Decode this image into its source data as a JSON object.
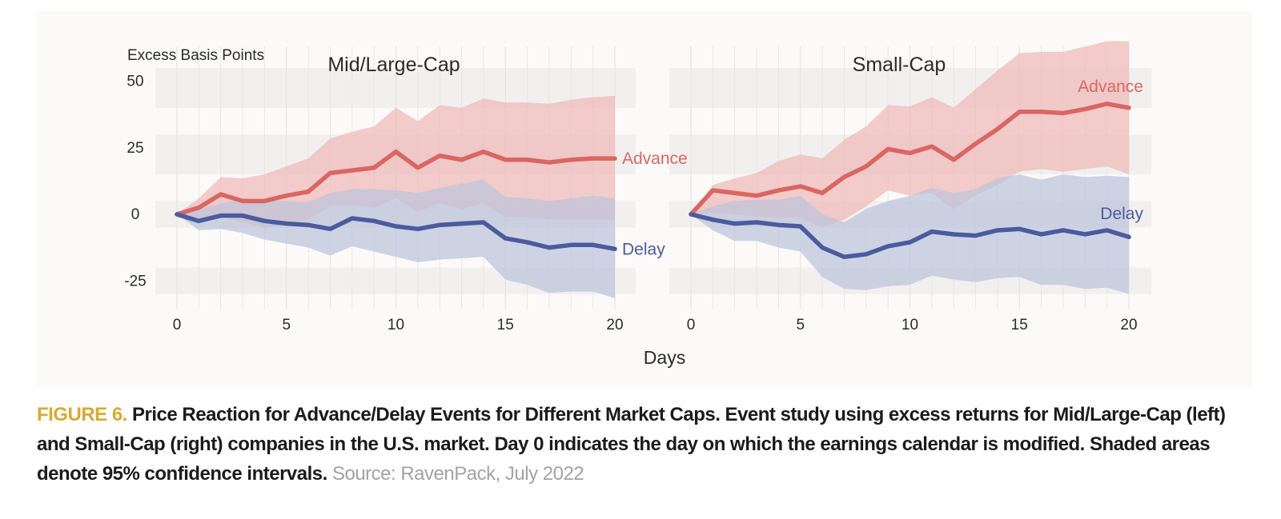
{
  "colors": {
    "advance": "#d96663",
    "advance_band": "#eeb9b9",
    "delay": "#4a5b9e",
    "delay_band": "#bcc3dc",
    "overlap": "#c9b3c4",
    "stripe": "#f1f0ee",
    "grid": "#e6e4e1",
    "panel_bg": "#fbfaf8",
    "figure_label": "#d9a935",
    "source_text": "#a3a3a3"
  },
  "chart_data": {
    "type": "line",
    "ylabel": "Excess Basis Points",
    "xlabel": "Days",
    "ylim": [
      -35,
      55
    ],
    "xlim": [
      0,
      20
    ],
    "yticks": [
      50,
      25,
      0,
      -25
    ],
    "xticks": [
      0,
      5,
      10,
      15,
      20
    ],
    "grid": true,
    "legend": "direct labels at line ends",
    "panels": [
      {
        "title": "Mid/Large-Cap",
        "series": [
          {
            "name": "Advance",
            "x": [
              0,
              1,
              2,
              3,
              4,
              5,
              6,
              7,
              8,
              9,
              10,
              11,
              12,
              13,
              14,
              15,
              16,
              17,
              18,
              19,
              20
            ],
            "values": [
              0,
              2.5,
              7.5,
              5,
              5,
              7,
              8.5,
              15.5,
              16.5,
              17.5,
              23.5,
              17.5,
              22,
              20.5,
              23.5,
              20.5,
              20.5,
              19.5,
              20.5,
              21,
              21
            ],
            "upper": [
              0,
              6,
              14,
              13.5,
              15,
              18,
              21,
              28.5,
              31,
              33,
              40,
              35,
              41,
              40,
              43.5,
              42,
              42,
              41.5,
              43,
              44,
              44.5
            ],
            "lower": [
              0,
              -1.5,
              -1,
              -3,
              -5,
              -4,
              -2,
              3,
              3.5,
              2.5,
              6,
              1,
              4,
              2,
              4,
              -1,
              -1,
              -2,
              -2,
              -2,
              -2
            ]
          },
          {
            "name": "Delay",
            "x": [
              0,
              1,
              2,
              3,
              4,
              5,
              6,
              7,
              8,
              9,
              10,
              11,
              12,
              13,
              14,
              15,
              16,
              17,
              18,
              19,
              20
            ],
            "values": [
              0,
              -2.5,
              -0.5,
              -0.5,
              -2.5,
              -3.5,
              -4,
              -5.5,
              -1.5,
              -2.5,
              -4.5,
              -5.5,
              -4,
              -3.5,
              -3,
              -9,
              -10.5,
              -12.5,
              -11.5,
              -11.5,
              -13
            ],
            "upper": [
              0,
              2,
              4,
              6,
              5.5,
              5,
              4.5,
              8,
              9.5,
              9.5,
              9,
              8,
              10,
              11.5,
              13,
              6.5,
              6,
              5,
              6,
              7,
              6
            ],
            "lower": [
              0,
              -6,
              -5.5,
              -7,
              -9.5,
              -11,
              -12.5,
              -15.5,
              -12,
              -14,
              -16,
              -18,
              -17,
              -16.5,
              -16,
              -24.5,
              -26.5,
              -29.5,
              -29,
              -29,
              -31.5
            ]
          }
        ]
      },
      {
        "title": "Small-Cap",
        "series": [
          {
            "name": "Advance",
            "x": [
              0,
              1,
              2,
              3,
              4,
              5,
              6,
              7,
              8,
              9,
              10,
              11,
              12,
              13,
              14,
              15,
              16,
              17,
              18,
              19,
              20
            ],
            "values": [
              0,
              9,
              8,
              7,
              9,
              10.5,
              8,
              14,
              18,
              24.5,
              23,
              25.5,
              20.5,
              26.5,
              32,
              38.5,
              38.5,
              38,
              39.5,
              41.5,
              40
            ],
            "upper": [
              0,
              11,
              13.5,
              15.5,
              20,
              22.5,
              21,
              28,
              33,
              41,
              40.5,
              44,
              40,
              47,
              54,
              60.5,
              61,
              61,
              63,
              65,
              65
            ],
            "lower": [
              0,
              0.5,
              0,
              -1,
              -1.5,
              -1,
              -5,
              -2,
              3,
              9,
              7,
              8,
              2,
              7,
              11,
              16,
              17,
              16,
              17,
              18,
              15
            ]
          },
          {
            "name": "Delay",
            "x": [
              0,
              1,
              2,
              3,
              4,
              5,
              6,
              7,
              8,
              9,
              10,
              11,
              12,
              13,
              14,
              15,
              16,
              17,
              18,
              19,
              20
            ],
            "values": [
              0,
              -2,
              -3.5,
              -3,
              -4,
              -4.5,
              -12.5,
              -16,
              -15,
              -12,
              -10.5,
              -6.5,
              -7.5,
              -8,
              -6,
              -5.5,
              -7.5,
              -6,
              -7.5,
              -6,
              -8.5
            ],
            "upper": [
              0,
              3,
              5,
              5.5,
              5.5,
              7,
              0,
              -3,
              2,
              5,
              7,
              10,
              8,
              9.5,
              13.5,
              15,
              13,
              15,
              14,
              14.5,
              14
            ],
            "lower": [
              0,
              -6,
              -10,
              -10,
              -12.5,
              -14,
              -23.5,
              -28,
              -28.5,
              -27,
              -26.5,
              -23,
              -24.5,
              -25.5,
              -24,
              -23.5,
              -26.5,
              -26.5,
              -28,
              -27.5,
              -30
            ]
          }
        ]
      }
    ]
  },
  "caption": {
    "figure_label": "FIGURE 6.",
    "text": "Price Reaction for Advance/Delay Events for Different Market Caps. Event study using excess returns for Mid/Large-Cap (left) and Small-Cap (right) companies in the U.S. market. Day 0 indicates the day on which the earnings calendar is modified. Shaded areas denote 95% confidence intervals.",
    "source": "Source: RavenPack, July 2022"
  }
}
